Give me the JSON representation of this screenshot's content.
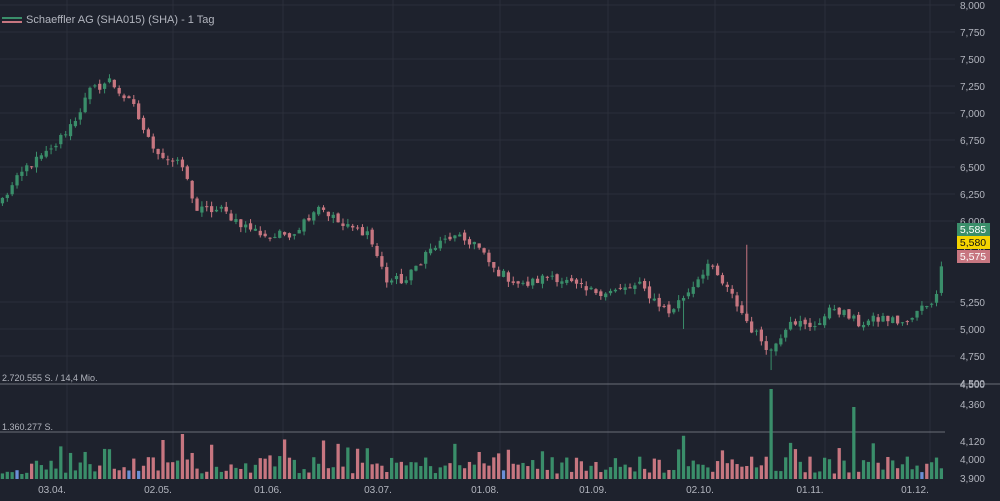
{
  "header": {
    "title": "Schaeffler AG (SHA015) (SHA) - 1 Tag"
  },
  "volume_labels": {
    "upper": "2.720.555 S. / 14,4 Mio.",
    "lower": "1.360.277 S."
  },
  "colors": {
    "background": "#1e222d",
    "grid": "#2b2f3a",
    "up": "#3a8e6a",
    "down": "#c77680",
    "highlight": "#6b8fd6",
    "text": "#b2b5be",
    "ask": "#3a8e6a",
    "last": "#f5d400",
    "bid": "#c77680"
  },
  "chart_data": {
    "type": "candlestick",
    "title": "Schaeffler AG (SHA015) (SHA) - 1 Tag",
    "x_tick_labels": [
      "03.04.",
      "02.05.",
      "01.06.",
      "03.07.",
      "01.08.",
      "01.09.",
      "02.10.",
      "01.11.",
      "01.12."
    ],
    "price_axis": {
      "ticks": [
        "8,000",
        "7,750",
        "7,500",
        "7,250",
        "7,000",
        "6,750",
        "6,500",
        "6,250",
        "6,000",
        "5,750",
        "5,250",
        "5,000",
        "4,750",
        "4,500"
      ],
      "ylim": [
        4.5,
        8.0
      ]
    },
    "volume_axis": {
      "ticks": [
        "4,500",
        "4,360",
        "4,120",
        "4,000",
        "3,900"
      ]
    },
    "price_labels": [
      {
        "label": "ask",
        "value": "5,585"
      },
      {
        "label": "last",
        "value": "5,580"
      },
      {
        "label": "bid",
        "value": "5,575"
      }
    ],
    "anchors": [
      [
        0,
        6.2
      ],
      [
        5,
        6.5
      ],
      [
        10,
        6.65
      ],
      [
        15,
        6.95
      ],
      [
        18,
        7.2
      ],
      [
        22,
        7.3
      ],
      [
        27,
        7.05
      ],
      [
        30,
        6.75
      ],
      [
        33,
        6.6
      ],
      [
        37,
        6.5
      ],
      [
        40,
        6.1
      ],
      [
        45,
        6.1
      ],
      [
        50,
        5.95
      ],
      [
        55,
        5.85
      ],
      [
        60,
        5.9
      ],
      [
        65,
        6.15
      ],
      [
        70,
        5.95
      ],
      [
        75,
        5.9
      ],
      [
        79,
        5.45
      ],
      [
        83,
        5.45
      ],
      [
        87,
        5.7
      ],
      [
        92,
        5.85
      ],
      [
        97,
        5.8
      ],
      [
        101,
        5.55
      ],
      [
        107,
        5.4
      ],
      [
        113,
        5.5
      ],
      [
        120,
        5.35
      ],
      [
        126,
        5.35
      ],
      [
        131,
        5.4
      ],
      [
        137,
        5.15
      ],
      [
        141,
        5.35
      ],
      [
        145,
        5.6
      ],
      [
        150,
        5.3
      ],
      [
        154,
        5.0
      ],
      [
        158,
        4.8
      ],
      [
        162,
        5.1
      ],
      [
        166,
        5.0
      ],
      [
        171,
        5.2
      ],
      [
        176,
        5.05
      ],
      [
        181,
        5.1
      ],
      [
        186,
        5.05
      ],
      [
        189,
        5.2
      ],
      [
        192,
        5.3
      ],
      [
        193,
        5.58
      ]
    ],
    "volume_spikes": [
      [
        37,
        1.0
      ],
      [
        71,
        0.7
      ],
      [
        98,
        0.6
      ],
      [
        104,
        0.65
      ],
      [
        158,
        2.0
      ],
      [
        175,
        1.6
      ]
    ],
    "highlight_bars": [
      3,
      26,
      28,
      103,
      189
    ]
  }
}
